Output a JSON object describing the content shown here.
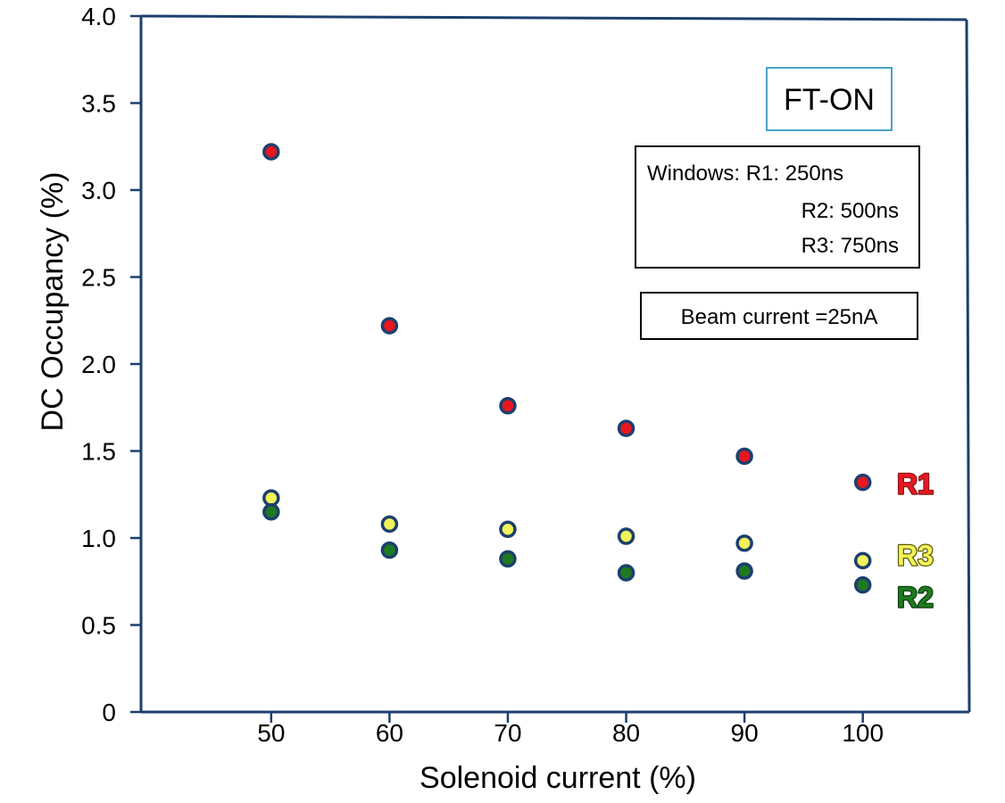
{
  "chart_data": {
    "type": "scatter",
    "xlabel": "Solenoid current (%)",
    "ylabel": "DC Occupancy (%)",
    "xlim": [
      39,
      109
    ],
    "ylim": [
      0,
      4.0
    ],
    "x_ticks": [
      50,
      60,
      70,
      80,
      90,
      100
    ],
    "y_ticks": [
      0,
      0.5,
      1.0,
      1.5,
      2.0,
      2.5,
      3.0,
      3.5,
      4.0
    ],
    "x_tick_labels": [
      "50",
      "60",
      "70",
      "80",
      "90",
      "100"
    ],
    "y_tick_labels": [
      "0",
      "0.5",
      "1.0",
      "1.5",
      "2.0",
      "2.5",
      "3.0",
      "3.5",
      "4.0"
    ],
    "grid": false,
    "series": [
      {
        "name": "R1",
        "color": "#e8171f",
        "label_color": "#e8171f",
        "label_outline": "#8a1a1a",
        "points": [
          [
            50,
            3.22
          ],
          [
            60,
            2.22
          ],
          [
            70,
            1.76
          ],
          [
            80,
            1.63
          ],
          [
            90,
            1.47
          ],
          [
            100,
            1.32
          ]
        ]
      },
      {
        "name": "R3",
        "color": "#f2f25a",
        "label_color": "#f2f25a",
        "label_outline": "#5a5a00",
        "points": [
          [
            50,
            1.23
          ],
          [
            60,
            1.08
          ],
          [
            70,
            1.05
          ],
          [
            80,
            1.01
          ],
          [
            90,
            0.97
          ],
          [
            100,
            0.87
          ]
        ]
      },
      {
        "name": "R2",
        "color": "#1f7a1f",
        "label_color": "#1f7a1f",
        "label_outline": "#0d3d0d",
        "points": [
          [
            50,
            1.15
          ],
          [
            60,
            0.93
          ],
          [
            70,
            0.88
          ],
          [
            80,
            0.8
          ],
          [
            90,
            0.81
          ],
          [
            100,
            0.73
          ]
        ]
      }
    ],
    "annotations": {
      "mode_badge": "FT-ON",
      "windows_lines": [
        "Windows: R1: 250ns",
        "R2: 500ns",
        "R3: 750ns"
      ],
      "beam_current": "Beam current =25nA"
    },
    "marker_outline_color": "#1c3f6e",
    "frame_color": "#1c3f6e",
    "badge_border_color": "#4aa3c8"
  }
}
